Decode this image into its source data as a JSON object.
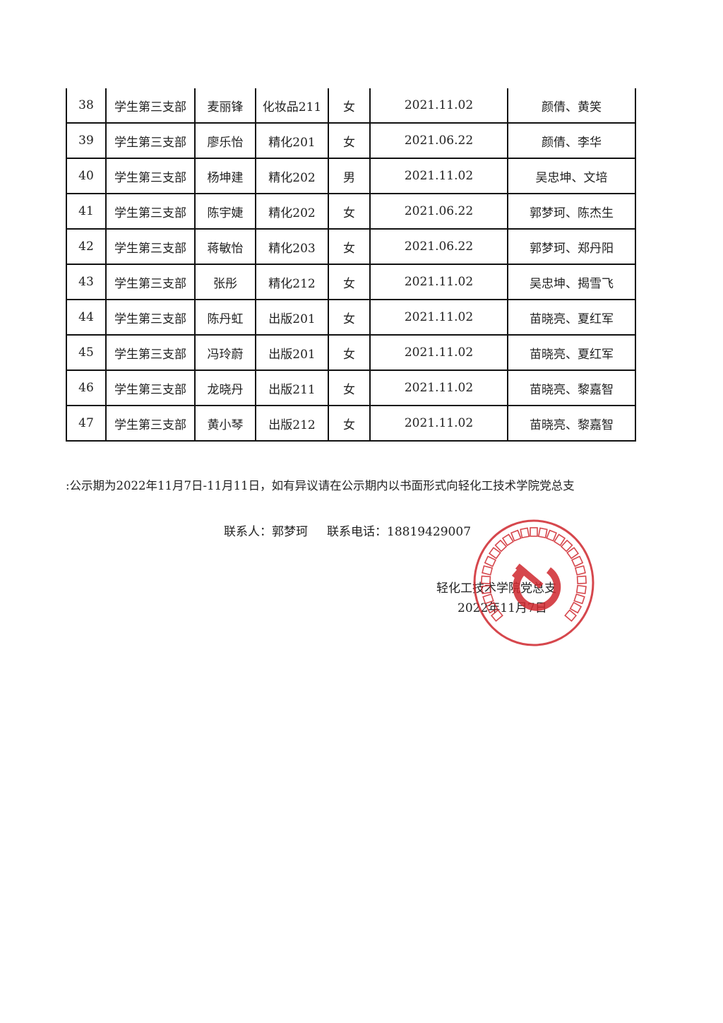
{
  "table": {
    "rows": [
      {
        "no": "38",
        "branch": "学生第三支部",
        "name": "麦丽锋",
        "class": "化妆品211",
        "gender": "女",
        "date": "2021.11.02",
        "sponsors": "颜倩、黄笑"
      },
      {
        "no": "39",
        "branch": "学生第三支部",
        "name": "廖乐怡",
        "class": "精化201",
        "gender": "女",
        "date": "2021.06.22",
        "sponsors": "颜倩、李华"
      },
      {
        "no": "40",
        "branch": "学生第三支部",
        "name": "杨坤建",
        "class": "精化202",
        "gender": "男",
        "date": "2021.11.02",
        "sponsors": "吴忠坤、文培"
      },
      {
        "no": "41",
        "branch": "学生第三支部",
        "name": "陈宇婕",
        "class": "精化202",
        "gender": "女",
        "date": "2021.06.22",
        "sponsors": "郭梦珂、陈杰生"
      },
      {
        "no": "42",
        "branch": "学生第三支部",
        "name": "蒋敏怡",
        "class": "精化203",
        "gender": "女",
        "date": "2021.06.22",
        "sponsors": "郭梦珂、郑丹阳"
      },
      {
        "no": "43",
        "branch": "学生第三支部",
        "name": "张彤",
        "class": "精化212",
        "gender": "女",
        "date": "2021.11.02",
        "sponsors": "吴忠坤、揭雪飞"
      },
      {
        "no": "44",
        "branch": "学生第三支部",
        "name": "陈丹虹",
        "class": "出版201",
        "gender": "女",
        "date": "2021.11.02",
        "sponsors": "苗晓亮、夏红军"
      },
      {
        "no": "45",
        "branch": "学生第三支部",
        "name": "冯玲蔚",
        "class": "出版201",
        "gender": "女",
        "date": "2021.11.02",
        "sponsors": "苗晓亮、夏红军"
      },
      {
        "no": "46",
        "branch": "学生第三支部",
        "name": "龙晓丹",
        "class": "出版211",
        "gender": "女",
        "date": "2021.11.02",
        "sponsors": "苗晓亮、黎嘉智"
      },
      {
        "no": "47",
        "branch": "学生第三支部",
        "name": "黄小琴",
        "class": "出版212",
        "gender": "女",
        "date": "2021.11.02",
        "sponsors": "苗晓亮、黎嘉智"
      }
    ]
  },
  "note": ":公示期为2022年11月7日-11月11日，如有异议请在公示期内以书面形式向轻化工技术学院党总支",
  "contact": {
    "person_label": "联系人：",
    "person": "郭梦珂",
    "phone_label": "联系电话：",
    "phone": "18819429007"
  },
  "signature": {
    "org": "轻化工技术学院党总支",
    "date": "2022年11月7日"
  },
  "stamp": {
    "text": "中共广东轻工职业技术学院轻化工技术学院总支部委员会",
    "color": "#d0282e"
  }
}
